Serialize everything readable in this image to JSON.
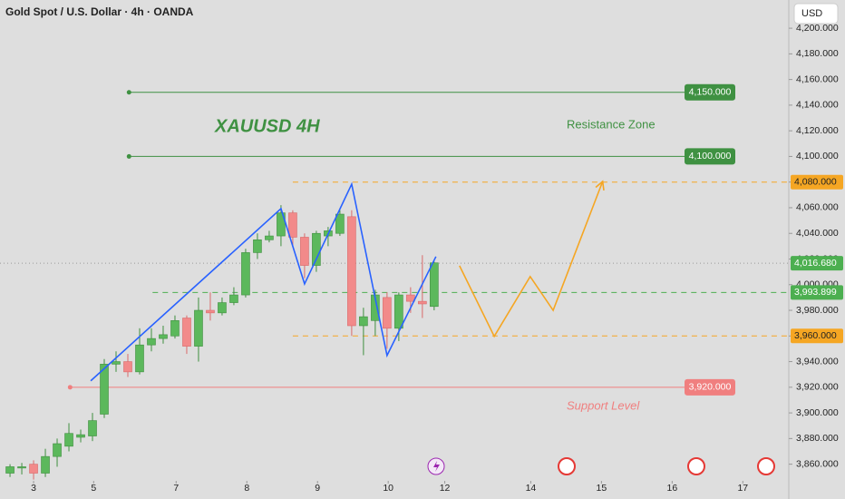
{
  "chart_data": {
    "type": "candlestick",
    "title": "Gold Spot / U.S. Dollar · 4h · OANDA",
    "currency": "USD",
    "up_color": "#5cb85c",
    "down_color": "#f28a8a",
    "x": [
      0,
      1,
      2,
      3,
      4,
      5,
      6,
      7,
      8,
      9,
      10,
      11,
      12,
      13,
      14,
      15,
      16,
      17,
      18,
      19,
      20,
      21,
      22,
      23,
      24,
      25,
      26,
      27,
      28,
      29,
      30,
      31,
      32,
      33,
      34,
      35,
      36
    ],
    "open": [
      3853,
      3857,
      3860,
      3853,
      3866,
      3874,
      3881,
      3882,
      3899,
      3938,
      3940,
      3932,
      3953,
      3958,
      3960,
      3974,
      3952,
      3980,
      3978,
      3986,
      3992,
      4025,
      4035,
      4038,
      4056,
      4037,
      4015,
      4038,
      4040,
      4053,
      3968,
      3972,
      3990,
      3966,
      3992,
      3987,
      3983
    ],
    "high": [
      3860,
      3861,
      3863,
      3872,
      3880,
      3892,
      3887,
      3900,
      3942,
      3948,
      3946,
      3966,
      3966,
      3968,
      3976,
      3976,
      3990,
      3994,
      3990,
      3998,
      4028,
      4040,
      4042,
      4062,
      4058,
      4040,
      4042,
      4045,
      4058,
      4058,
      3982,
      3996,
      3994,
      3994,
      3998,
      4023,
      4018
    ],
    "low": [
      3850,
      3852,
      3848,
      3850,
      3858,
      3870,
      3877,
      3878,
      3896,
      3932,
      3928,
      3930,
      3948,
      3954,
      3958,
      3946,
      3940,
      3972,
      3976,
      3984,
      3990,
      4020,
      4033,
      4030,
      4030,
      4005,
      4010,
      4030,
      4038,
      3960,
      3945,
      3960,
      3950,
      3956,
      3978,
      3974,
      3980
    ],
    "close": [
      3858,
      3858,
      3853,
      3866,
      3876,
      3884,
      3883,
      3894,
      3938,
      3940,
      3932,
      3953,
      3958,
      3961,
      3972,
      3952,
      3980,
      3978,
      3986,
      3992,
      4025,
      4035,
      4038,
      4056,
      4037,
      4015,
      4040,
      4042,
      4055,
      3968,
      3975,
      3992,
      3966,
      3992,
      3987,
      3985,
      4017
    ],
    "xlim": [
      -0.85,
      66.1
    ],
    "xticks": [
      {
        "value": 2,
        "label": "3"
      },
      {
        "value": 7.1,
        "label": "5"
      },
      {
        "value": 14.1,
        "label": "7"
      },
      {
        "value": 20.1,
        "label": "8"
      },
      {
        "value": 26.1,
        "label": "9"
      },
      {
        "value": 32.1,
        "label": "10"
      },
      {
        "value": 36.9,
        "label": "12"
      },
      {
        "value": 44.2,
        "label": "14"
      },
      {
        "value": 50.2,
        "label": "15"
      },
      {
        "value": 56.2,
        "label": "16"
      },
      {
        "value": 62.2,
        "label": "17"
      }
    ],
    "ylim": [
      3847,
      4222
    ],
    "yticks": [
      {
        "value": 4200,
        "label": "4,200.000"
      },
      {
        "value": 4180,
        "label": "4,180.000"
      },
      {
        "value": 4160,
        "label": "4,160.000"
      },
      {
        "value": 4140,
        "label": "4,140.000"
      },
      {
        "value": 4120,
        "label": "4,120.000"
      },
      {
        "value": 4100,
        "label": "4,100.000"
      },
      {
        "value": 4080,
        "label": "4,080.000"
      },
      {
        "value": 4060,
        "label": "4,060.000"
      },
      {
        "value": 4040,
        "label": "4,040.000"
      },
      {
        "value": 4020,
        "label": "4,020.000"
      },
      {
        "value": 4000,
        "label": "4,000.000"
      },
      {
        "value": 3980,
        "label": "3,980.000"
      },
      {
        "value": 3960,
        "label": "3,960.000"
      },
      {
        "value": 3940,
        "label": "3,940.000"
      },
      {
        "value": 3920,
        "label": "3,920.000"
      },
      {
        "value": 3900,
        "label": "3,900.000"
      },
      {
        "value": 3880,
        "label": "3,880.000"
      },
      {
        "value": 3860,
        "label": "3,860.000"
      }
    ],
    "levels": [
      {
        "value": 4150,
        "label": "4,150.000",
        "color": "#3f9142",
        "from": 10.1,
        "style": "solid",
        "tag": "box"
      },
      {
        "value": 4100,
        "label": "4,100.000",
        "color": "#3f9142",
        "from": 10.1,
        "style": "solid",
        "tag": "box"
      },
      {
        "value": 3920,
        "label": "3,920.000",
        "color": "#f07f7f",
        "from": 5.1,
        "style": "solid",
        "tag": "box"
      },
      {
        "value": 4080,
        "label": "4,080.000",
        "color": "#f5a623",
        "from": 24,
        "style": "dashed",
        "tag": "axis"
      },
      {
        "value": 3960,
        "label": "3,960.000",
        "color": "#f5a623",
        "from": 24,
        "style": "dashed",
        "tag": "axis"
      },
      {
        "value": 3993.899,
        "label": "3,993.899",
        "color": "#4caf50",
        "from": 12.1,
        "style": "dashed",
        "tag": "axis"
      },
      {
        "value": 4016.68,
        "label": "4,016.680",
        "color": "#4caf50",
        "from": -0.85,
        "style": "dotted",
        "tag": "axis"
      }
    ],
    "drawings": [
      {
        "color": "#2962ff",
        "arrow": false,
        "x": [
          6.85,
          23.0,
          25.0,
          29.0,
          32.0,
          36.15
        ],
        "y": [
          3925,
          4059.3,
          4000.6,
          4078.4,
          3944.8,
          4021.9
        ]
      },
      {
        "color": "#f5a623",
        "arrow": true,
        "x": [
          38.15,
          41.1,
          44.15,
          46.1,
          50.3
        ],
        "y": [
          4014.8,
          3959.7,
          4006.3,
          3980,
          4080.5
        ]
      }
    ],
    "annotations": {
      "symbol": "XAUUSD 4H",
      "resistance": "Resistance Zone",
      "support": "Support Level"
    }
  }
}
